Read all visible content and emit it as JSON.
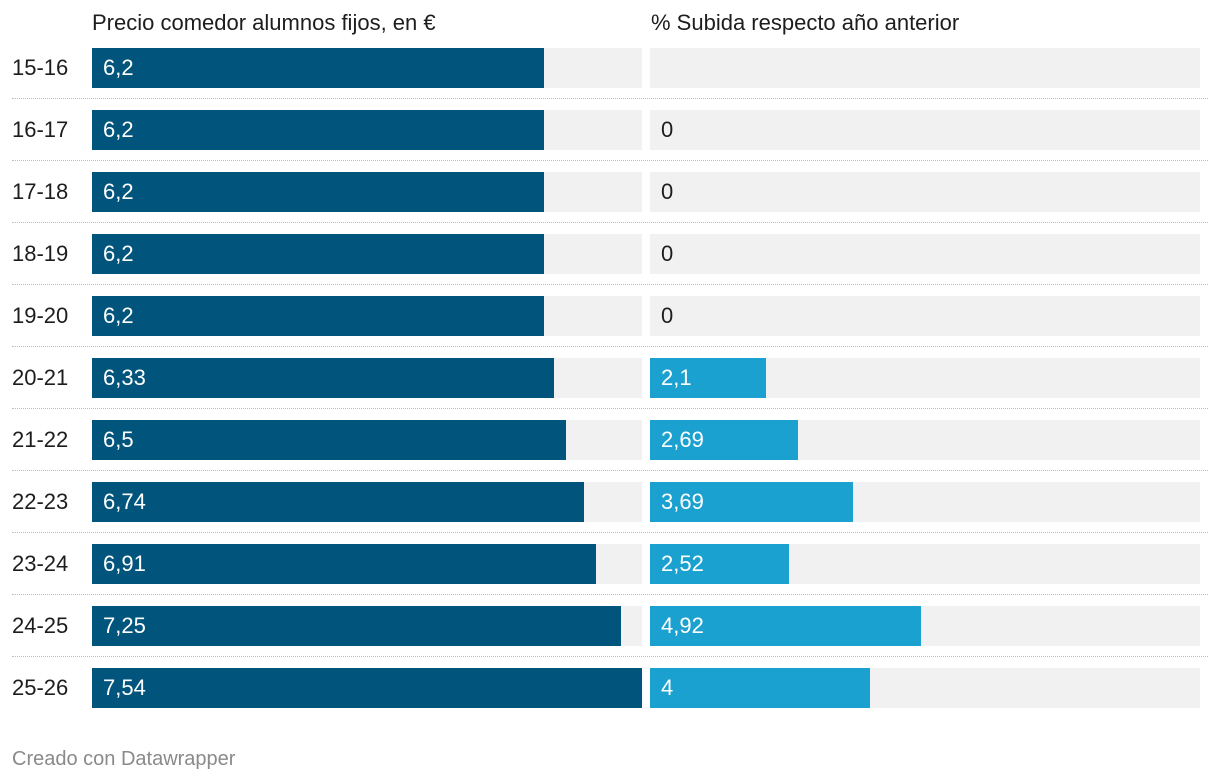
{
  "chart_data": {
    "type": "bar",
    "layout": "horizontal-split",
    "categories": [
      "15-16",
      "16-17",
      "17-18",
      "18-19",
      "19-20",
      "20-21",
      "21-22",
      "22-23",
      "23-24",
      "24-25",
      "25-26"
    ],
    "series": [
      {
        "name": "Precio comedor alumnos fijos, en €",
        "values": [
          6.2,
          6.2,
          6.2,
          6.2,
          6.2,
          6.33,
          6.5,
          6.74,
          6.91,
          7.25,
          7.54
        ],
        "labels": [
          "6,2",
          "6,2",
          "6,2",
          "6,2",
          "6,2",
          "6,33",
          "6,5",
          "6,74",
          "6,91",
          "7,25",
          "7,54"
        ],
        "xlim": [
          0,
          7.54
        ],
        "color": "#01547c"
      },
      {
        "name": "% Subida respecto año anterior",
        "values": [
          null,
          0,
          0,
          0,
          0,
          2.1,
          2.69,
          3.69,
          2.52,
          4.92,
          4
        ],
        "labels": [
          "",
          "0",
          "0",
          "0",
          "0",
          "2,1",
          "2,69",
          "3,69",
          "2,52",
          "4,92",
          "4"
        ],
        "xlim": [
          0,
          10
        ],
        "color": "#1aa1cf"
      }
    ],
    "grid": false,
    "legend": "none"
  },
  "footer": "Creado con Datawrapper"
}
